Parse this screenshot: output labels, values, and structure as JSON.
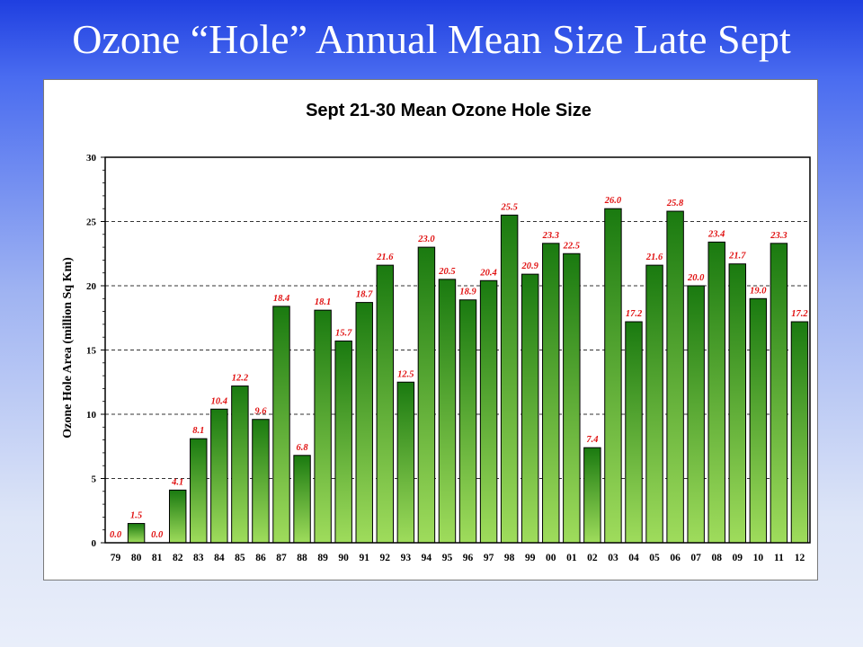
{
  "slide": {
    "title": "Ozone “Hole” Annual Mean Size Late Sept"
  },
  "chart_data": {
    "type": "bar",
    "title": "Sept 21-30 Mean Ozone Hole Size",
    "xlabel": "",
    "ylabel": "Ozone Hole Area (million Sq Km)",
    "ylim": [
      0,
      30
    ],
    "yticks": [
      0,
      5,
      10,
      15,
      20,
      25,
      30
    ],
    "grid": true,
    "categories": [
      "79",
      "80",
      "81",
      "82",
      "83",
      "84",
      "85",
      "86",
      "87",
      "88",
      "89",
      "90",
      "91",
      "92",
      "93",
      "94",
      "95",
      "96",
      "97",
      "98",
      "99",
      "00",
      "01",
      "02",
      "03",
      "04",
      "05",
      "06",
      "07",
      "08",
      "09",
      "10",
      "11",
      "12"
    ],
    "values": [
      0.0,
      1.5,
      0.0,
      4.1,
      8.1,
      10.4,
      12.2,
      9.6,
      18.4,
      6.8,
      18.1,
      15.7,
      18.7,
      21.6,
      12.5,
      23.0,
      20.5,
      18.9,
      20.4,
      25.5,
      20.9,
      23.3,
      22.5,
      7.4,
      26.0,
      17.2,
      21.6,
      25.8,
      20.0,
      23.4,
      21.7,
      19.0,
      23.3,
      17.2
    ],
    "data_labels": [
      "0.0",
      "1.5",
      "0.0",
      "4.1",
      "8.1",
      "10.4",
      "12.2",
      "9.6",
      "18.4",
      "6.8",
      "18.1",
      "15.7",
      "18.7",
      "21.6",
      "12.5",
      "23.0",
      "20.5",
      "18.9",
      "20.4",
      "25.5",
      "20.9",
      "23.3",
      "22.5",
      "7.4",
      "26.0",
      "17.2",
      "21.6",
      "25.8",
      "20.0",
      "23.4",
      "21.7",
      "19.0",
      "23.3",
      "17.2"
    ],
    "colors": {
      "bar_top": "#1a7a10",
      "bar_bottom": "#9fdc5c",
      "label": "#e01010",
      "grid": "#333333"
    }
  }
}
